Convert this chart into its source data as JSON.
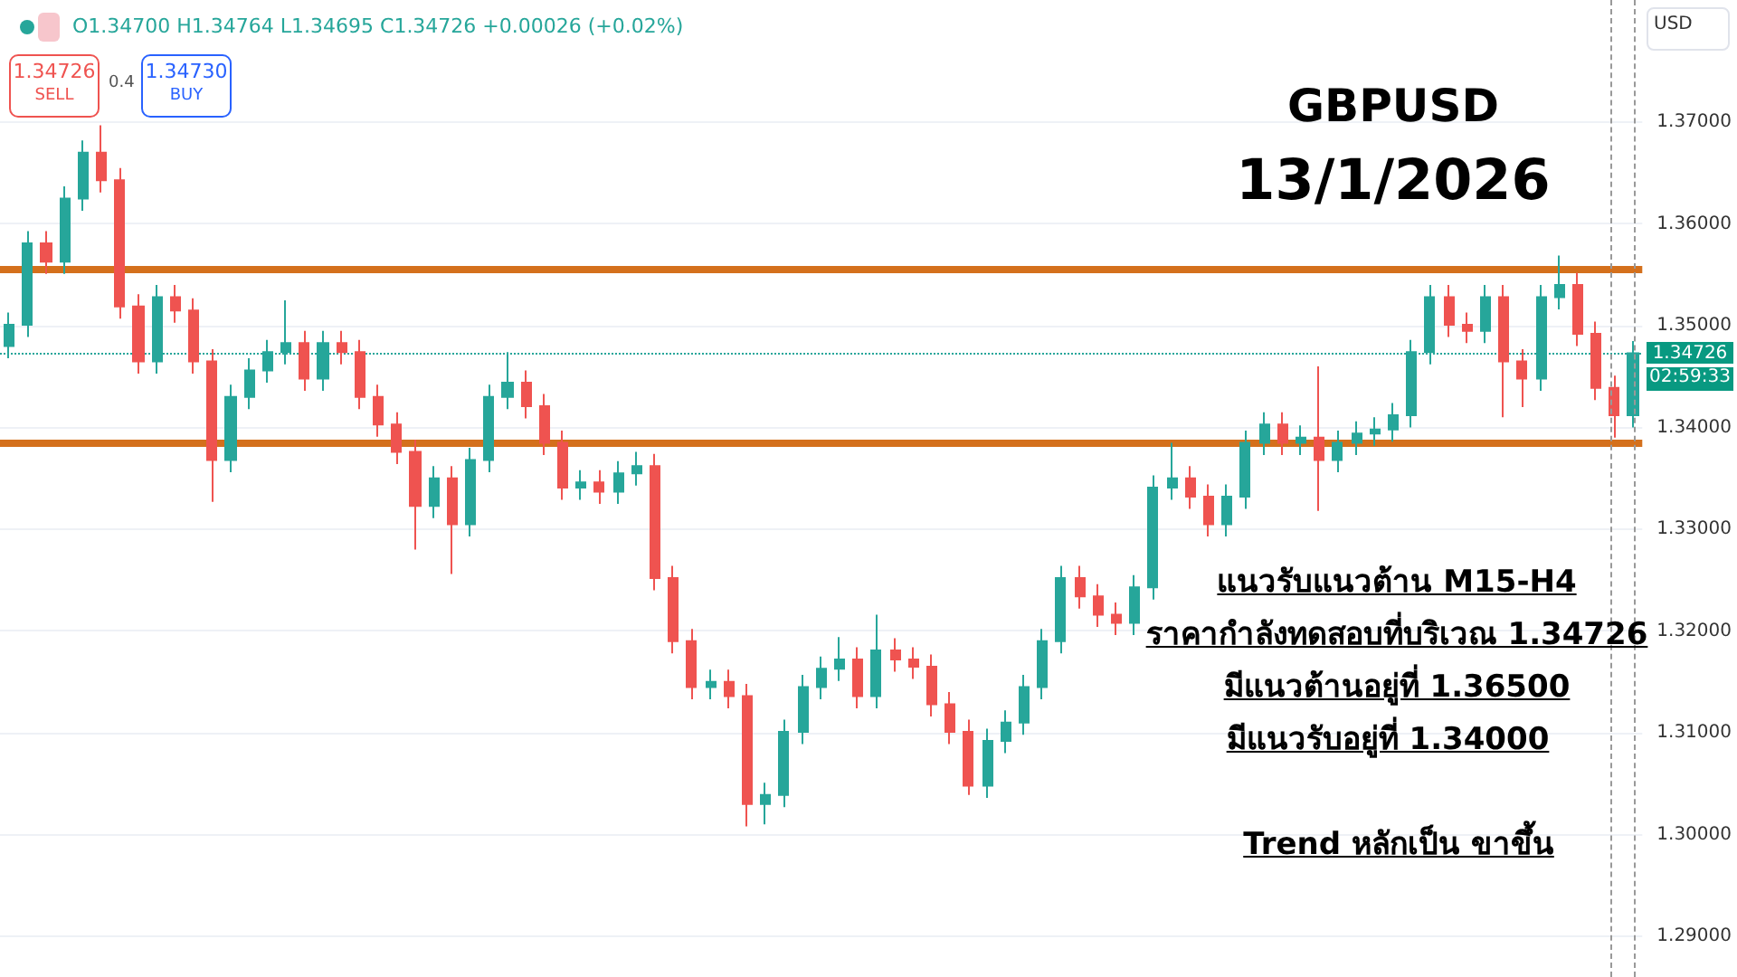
{
  "chart_data": {
    "type": "candlestick",
    "title": "GBPUSD",
    "subtitle": "13/1/2026",
    "categories": [
      null,
      null,
      null,
      null,
      null,
      null,
      null,
      null,
      null,
      null,
      null,
      null,
      null,
      null,
      null,
      null,
      null,
      null,
      null,
      null,
      null,
      null,
      null,
      null,
      null,
      null,
      null,
      null,
      null,
      null,
      null,
      null,
      null,
      null,
      null,
      null,
      null,
      null,
      null,
      null,
      null,
      null,
      null,
      null,
      null,
      null,
      null,
      null,
      null,
      null,
      null,
      null,
      null,
      null,
      null,
      null,
      null,
      null,
      null,
      null,
      null,
      null,
      null,
      null,
      null,
      null,
      null,
      null,
      null,
      null,
      null,
      null,
      null,
      null,
      null,
      null,
      null,
      null,
      null,
      null,
      null,
      null,
      null,
      null,
      null,
      null,
      null,
      null,
      null
    ],
    "ohlc": [
      [
        1.348,
        1.3513,
        1.3468,
        1.3501
      ],
      [
        1.3501,
        1.3593,
        1.3489,
        1.3581
      ],
      [
        1.3581,
        1.3593,
        1.3551,
        1.3563
      ],
      [
        1.3563,
        1.3637,
        1.3551,
        1.3625
      ],
      [
        1.3625,
        1.3682,
        1.3613,
        1.367
      ],
      [
        1.367,
        1.3697,
        1.3631,
        1.3643
      ],
      [
        1.3643,
        1.3655,
        1.3507,
        1.3519
      ],
      [
        1.3519,
        1.3531,
        1.3453,
        1.3465
      ],
      [
        1.3465,
        1.354,
        1.3453,
        1.3528
      ],
      [
        1.3528,
        1.354,
        1.3503,
        1.3515
      ],
      [
        1.3515,
        1.3527,
        1.3453,
        1.3465
      ],
      [
        1.3465,
        1.3477,
        1.3327,
        1.3368
      ],
      [
        1.3368,
        1.3442,
        1.3356,
        1.343
      ],
      [
        1.343,
        1.3468,
        1.3418,
        1.3456
      ],
      [
        1.3456,
        1.3486,
        1.3444,
        1.3474
      ],
      [
        1.3474,
        1.3525,
        1.3462,
        1.3483
      ],
      [
        1.3483,
        1.3495,
        1.3436,
        1.3448
      ],
      [
        1.3448,
        1.3495,
        1.3436,
        1.3483
      ],
      [
        1.3483,
        1.3495,
        1.3462,
        1.3474
      ],
      [
        1.3474,
        1.3486,
        1.3418,
        1.343
      ],
      [
        1.343,
        1.3442,
        1.3391,
        1.3403
      ],
      [
        1.3403,
        1.3415,
        1.3364,
        1.3376
      ],
      [
        1.3376,
        1.3388,
        1.328,
        1.3323
      ],
      [
        1.3323,
        1.3362,
        1.3311,
        1.335
      ],
      [
        1.335,
        1.3362,
        1.3256,
        1.3305
      ],
      [
        1.3305,
        1.338,
        1.3293,
        1.3368
      ],
      [
        1.3368,
        1.3442,
        1.3356,
        1.343
      ],
      [
        1.343,
        1.3474,
        1.3418,
        1.3444
      ],
      [
        1.3444,
        1.3456,
        1.3409,
        1.3421
      ],
      [
        1.3421,
        1.3433,
        1.3373,
        1.3385
      ],
      [
        1.3385,
        1.3397,
        1.3329,
        1.3341
      ],
      [
        1.3341,
        1.3358,
        1.3329,
        1.3346
      ],
      [
        1.3346,
        1.3358,
        1.3325,
        1.3337
      ],
      [
        1.3337,
        1.3367,
        1.3325,
        1.3355
      ],
      [
        1.3355,
        1.3376,
        1.3343,
        1.3362
      ],
      [
        1.3362,
        1.3374,
        1.324,
        1.3252
      ],
      [
        1.3252,
        1.3264,
        1.3178,
        1.319
      ],
      [
        1.319,
        1.3202,
        1.3133,
        1.3145
      ],
      [
        1.3145,
        1.3162,
        1.3133,
        1.315
      ],
      [
        1.315,
        1.3162,
        1.3124,
        1.3136
      ],
      [
        1.3136,
        1.3148,
        1.3008,
        1.303
      ],
      [
        1.303,
        1.3051,
        1.301,
        1.3039
      ],
      [
        1.3039,
        1.3113,
        1.3027,
        1.3101
      ],
      [
        1.3101,
        1.3157,
        1.3089,
        1.3145
      ],
      [
        1.3145,
        1.3175,
        1.3133,
        1.3163
      ],
      [
        1.3163,
        1.3194,
        1.3151,
        1.3172
      ],
      [
        1.3172,
        1.3184,
        1.3124,
        1.3136
      ],
      [
        1.3136,
        1.3216,
        1.3124,
        1.3181
      ],
      [
        1.3181,
        1.3193,
        1.316,
        1.3172
      ],
      [
        1.3172,
        1.3184,
        1.3153,
        1.3165
      ],
      [
        1.3165,
        1.3177,
        1.3116,
        1.3128
      ],
      [
        1.3128,
        1.314,
        1.3089,
        1.3101
      ],
      [
        1.3101,
        1.3113,
        1.3039,
        1.3048
      ],
      [
        1.3048,
        1.3104,
        1.3036,
        1.3092
      ],
      [
        1.3092,
        1.3122,
        1.308,
        1.311
      ],
      [
        1.311,
        1.3157,
        1.3098,
        1.3145
      ],
      [
        1.3145,
        1.3202,
        1.3133,
        1.319
      ],
      [
        1.319,
        1.3264,
        1.3178,
        1.3252
      ],
      [
        1.3252,
        1.3264,
        1.3222,
        1.3234
      ],
      [
        1.3234,
        1.3246,
        1.3204,
        1.3216
      ],
      [
        1.3216,
        1.3228,
        1.3196,
        1.3208
      ],
      [
        1.3208,
        1.3255,
        1.3196,
        1.3243
      ],
      [
        1.3243,
        1.3353,
        1.3231,
        1.3341
      ],
      [
        1.3341,
        1.3385,
        1.3329,
        1.335
      ],
      [
        1.335,
        1.3362,
        1.332,
        1.3332
      ],
      [
        1.3332,
        1.3344,
        1.3293,
        1.3305
      ],
      [
        1.3305,
        1.3344,
        1.3293,
        1.3332
      ],
      [
        1.3332,
        1.3397,
        1.332,
        1.3385
      ],
      [
        1.3385,
        1.3415,
        1.3373,
        1.3403
      ],
      [
        1.3403,
        1.3415,
        1.3373,
        1.3385
      ],
      [
        1.3385,
        1.3402,
        1.3373,
        1.339
      ],
      [
        1.339,
        1.346,
        1.3318,
        1.3368
      ],
      [
        1.3368,
        1.3397,
        1.3356,
        1.3385
      ],
      [
        1.3385,
        1.3406,
        1.3373,
        1.3394
      ],
      [
        1.3394,
        1.341,
        1.3382,
        1.3398
      ],
      [
        1.3398,
        1.3424,
        1.3386,
        1.3412
      ],
      [
        1.3412,
        1.3486,
        1.34,
        1.3474
      ],
      [
        1.3474,
        1.354,
        1.3462,
        1.3528
      ],
      [
        1.3528,
        1.354,
        1.3489,
        1.3501
      ],
      [
        1.3501,
        1.3513,
        1.3483,
        1.3495
      ],
      [
        1.3495,
        1.354,
        1.3483,
        1.3528
      ],
      [
        1.3528,
        1.354,
        1.341,
        1.3465
      ],
      [
        1.3465,
        1.3477,
        1.342,
        1.3448
      ],
      [
        1.3448,
        1.354,
        1.3436,
        1.3528
      ],
      [
        1.3528,
        1.3569,
        1.3516,
        1.354
      ],
      [
        1.354,
        1.3552,
        1.348,
        1.3492
      ],
      [
        1.3492,
        1.3504,
        1.3427,
        1.3439
      ],
      [
        1.3439,
        1.3451,
        1.339,
        1.3412
      ],
      [
        1.3412,
        1.3485,
        1.34,
        1.3473
      ]
    ],
    "colors": [
      "#26a69a",
      "#26a69a",
      "#ef5350",
      "#26a69a",
      "#26a69a",
      "#ef5350",
      "#ef5350",
      "#ef5350",
      "#26a69a",
      "#ef5350",
      "#ef5350",
      "#ef5350",
      "#26a69a",
      "#26a69a",
      "#26a69a",
      "#26a69a",
      "#ef5350",
      "#26a69a",
      "#ef5350",
      "#ef5350",
      "#ef5350",
      "#ef5350",
      "#ef5350",
      "#26a69a",
      "#ef5350",
      "#26a69a",
      "#26a69a",
      "#26a69a",
      "#ef5350",
      "#ef5350",
      "#ef5350",
      "#26a69a",
      "#ef5350",
      "#26a69a",
      "#26a69a",
      "#ef5350",
      "#ef5350",
      "#ef5350",
      "#26a69a",
      "#ef5350",
      "#ef5350",
      "#26a69a",
      "#26a69a",
      "#26a69a",
      "#26a69a",
      "#26a69a",
      "#ef5350",
      "#26a69a",
      "#ef5350",
      "#ef5350",
      "#ef5350",
      "#ef5350",
      "#ef5350",
      "#26a69a",
      "#26a69a",
      "#26a69a",
      "#26a69a",
      "#26a69a",
      "#ef5350",
      "#ef5350",
      "#ef5350",
      "#26a69a",
      "#26a69a",
      "#26a69a",
      "#ef5350",
      "#ef5350",
      "#26a69a",
      "#26a69a",
      "#26a69a",
      "#ef5350",
      "#26a69a",
      "#ef5350",
      "#26a69a",
      "#26a69a",
      "#26a69a",
      "#26a69a",
      "#26a69a",
      "#26a69a",
      "#ef5350",
      "#ef5350",
      "#26a69a",
      "#ef5350",
      "#ef5350",
      "#26a69a",
      "#26a69a",
      "#ef5350",
      "#ef5350",
      "#ef5350",
      "#26a69a"
    ],
    "ylim": [
      1.286,
      1.382
    ],
    "yticks": [
      {
        "value": 1.29,
        "label": "1.29000"
      },
      {
        "value": 1.3,
        "label": "1.30000"
      },
      {
        "value": 1.31,
        "label": "1.31000"
      },
      {
        "value": 1.32,
        "label": "1.32000"
      },
      {
        "value": 1.33,
        "label": "1.33000"
      },
      {
        "value": 1.34,
        "label": "1.34000"
      },
      {
        "value": 1.35,
        "label": "1.35000"
      },
      {
        "value": 1.36,
        "label": "1.36000"
      },
      {
        "value": 1.37,
        "label": "1.37000"
      }
    ],
    "grid": "y",
    "tick_labels": "y",
    "ref_lines": [
      {
        "axis": "y",
        "value": 1.3556,
        "color": "#d4701c",
        "line_style": "solid"
      },
      {
        "axis": "y",
        "value": 1.3384,
        "color": "#d4701c",
        "line_style": "solid"
      },
      {
        "axis": "y",
        "value": 1.34726,
        "color": "#26a69a",
        "line_style": "dotted"
      }
    ],
    "annotations": [
      "O1.34700 H1.34764 L1.34695 C1.34726 +0.00026 (+0.02%)",
      "1.34726",
      "SELL",
      "0.4",
      "1.34730",
      "BUY",
      "USD",
      "1.34726",
      "02:59:33",
      "แนวรับแนวต้าน M15-H4",
      "ราคากำลังทดสอบที่บริเวณ 1.34726",
      "มีแนวต้านอยู่ที่ 1.36500",
      "มีแนวรับอยู่ที่ 1.34000",
      "Trend หลักเป็น ขาขึ้น"
    ]
  }
}
